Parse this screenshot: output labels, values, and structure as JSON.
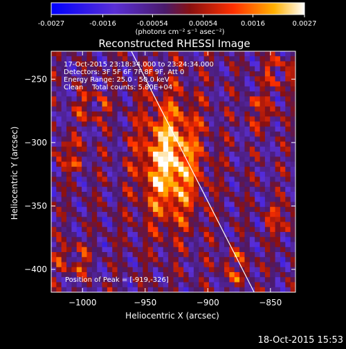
{
  "chart_data": {
    "type": "heatmap",
    "title": "Reconstructed RHESSI Image",
    "xlabel": "Heliocentric X (arcsec)",
    "ylabel": "Heliocentric Y (arcsec)",
    "xlim": [
      -1025,
      -830
    ],
    "ylim": [
      -418,
      -228
    ],
    "xticks": [
      -1000,
      -950,
      -900,
      -850
    ],
    "yticks": [
      -250,
      -300,
      -350,
      -400
    ],
    "colorbar": {
      "ticks": [
        "-0.0027",
        "-0.0016",
        "-0.00054",
        "0.00054",
        "0.0016",
        "0.0027"
      ],
      "unit_label": "(photons cm⁻² s⁻¹ asec⁻²)",
      "range": [
        -0.0027,
        0.0027
      ]
    },
    "annotations": [
      "17-Oct-2015 23:18:34.000 to 23:24:34.000",
      "Detectors: 3F 5F 6F 7F 8F 9F, Att 0",
      "Energy Range: 25.0 - 50.0 keV",
      "Clean    Total counts: 5.80E+04"
    ],
    "peak_label": "Position of Peak = [-919,-326]",
    "peak": [
      -919,
      -326
    ],
    "limb_line": [
      [
        -961,
        -228
      ],
      [
        -863,
        -418
      ]
    ],
    "source": {
      "x": -930,
      "y": -315,
      "sx": 17,
      "sy": 34,
      "amplitude": 0.0027
    }
  },
  "timestamp": "18-Oct-2015 15:53"
}
